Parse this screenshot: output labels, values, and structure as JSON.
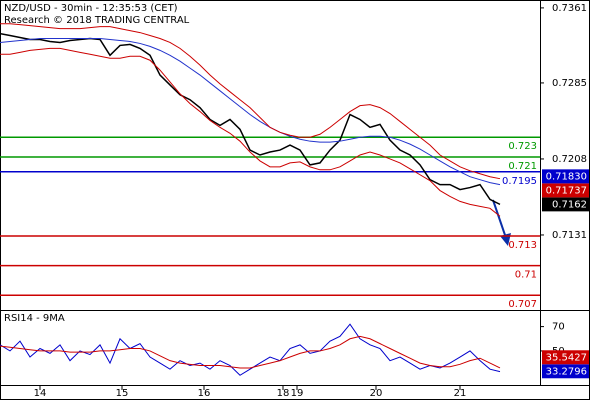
{
  "chart_data": [
    {
      "type": "line",
      "title": "NZD/USD - 30min - 12:35:53 (CET)",
      "subtitle": "Research © 2018 TRADING CENTRAL",
      "x": [
        0,
        2,
        4,
        6,
        8,
        10,
        12,
        14,
        16,
        18,
        20,
        22,
        24,
        26,
        28,
        30,
        32,
        34,
        36,
        38,
        40,
        42,
        44,
        46,
        48,
        50,
        52,
        54,
        56,
        58,
        60,
        62,
        64,
        66,
        68,
        70,
        72,
        74,
        76,
        78,
        80,
        82,
        84,
        86,
        88,
        90,
        92,
        94,
        96,
        98,
        100
      ],
      "xlim": [
        0,
        108
      ],
      "ylim": [
        0.7055,
        0.7369
      ],
      "yticks": [
        0.7361,
        0.7285,
        0.7208,
        0.7131
      ],
      "series": [
        {
          "color": "#000000",
          "values": [
            0.7335,
            0.7333,
            0.7331,
            0.7329,
            0.7329,
            0.7327,
            0.7326,
            0.7328,
            0.7329,
            0.733,
            0.7329,
            0.7313,
            0.7323,
            0.7324,
            0.732,
            0.7313,
            0.7293,
            0.7283,
            0.7273,
            0.7268,
            0.726,
            0.7248,
            0.7242,
            0.7248,
            0.7238,
            0.7217,
            0.7212,
            0.7215,
            0.7217,
            0.7222,
            0.7217,
            0.7202,
            0.7204,
            0.7217,
            0.7227,
            0.7253,
            0.7248,
            0.724,
            0.7243,
            0.7227,
            0.7217,
            0.7212,
            0.7202,
            0.7187,
            0.7182,
            0.7182,
            0.7177,
            0.7179,
            0.7182,
            0.7167,
            0.7162
          ]
        },
        {
          "color": "#2233cc",
          "values": [
            0.7326,
            0.7327,
            0.7328,
            0.7329,
            0.733,
            0.733,
            0.733,
            0.733,
            0.733,
            0.733,
            0.733,
            0.7329,
            0.7328,
            0.7327,
            0.7325,
            0.7322,
            0.7318,
            0.7313,
            0.7307,
            0.73,
            0.7293,
            0.7285,
            0.7277,
            0.7269,
            0.7261,
            0.7253,
            0.7246,
            0.724,
            0.7235,
            0.7231,
            0.7228,
            0.7226,
            0.7225,
            0.7225,
            0.7226,
            0.7228,
            0.723,
            0.7231,
            0.7231,
            0.723,
            0.7227,
            0.7223,
            0.7218,
            0.7212,
            0.7206,
            0.72,
            0.7195,
            0.719,
            0.7187,
            0.7184,
            0.7182
          ]
        },
        {
          "color": "#cc0000",
          "values": [
            0.7345,
            0.7345,
            0.7344,
            0.7343,
            0.7342,
            0.7341,
            0.734,
            0.734,
            0.734,
            0.7341,
            0.7342,
            0.7342,
            0.734,
            0.7338,
            0.7336,
            0.7333,
            0.733,
            0.7326,
            0.732,
            0.7312,
            0.7303,
            0.7293,
            0.7284,
            0.7276,
            0.7268,
            0.726,
            0.725,
            0.724,
            0.7235,
            0.7232,
            0.723,
            0.723,
            0.7233,
            0.724,
            0.7248,
            0.7256,
            0.7262,
            0.7263,
            0.726,
            0.7254,
            0.7246,
            0.7238,
            0.723,
            0.7222,
            0.7212,
            0.7206,
            0.72,
            0.7196,
            0.7193,
            0.719,
            0.7188
          ]
        },
        {
          "color": "#cc0000",
          "values": [
            0.7314,
            0.7314,
            0.7316,
            0.7318,
            0.7319,
            0.732,
            0.732,
            0.7318,
            0.7316,
            0.7314,
            0.7312,
            0.731,
            0.731,
            0.7312,
            0.7312,
            0.7308,
            0.7298,
            0.7286,
            0.7274,
            0.7264,
            0.7256,
            0.7247,
            0.724,
            0.7234,
            0.7226,
            0.7215,
            0.7206,
            0.72,
            0.72,
            0.7204,
            0.7205,
            0.72,
            0.7197,
            0.7197,
            0.72,
            0.7206,
            0.7212,
            0.7215,
            0.7212,
            0.7208,
            0.7204,
            0.7198,
            0.7192,
            0.7186,
            0.7176,
            0.717,
            0.7165,
            0.7162,
            0.716,
            0.7158,
            0.715
          ]
        }
      ],
      "levels": [
        {
          "value": 0.723,
          "color": "#009900"
        },
        {
          "value": 0.721,
          "color": "#009900"
        },
        {
          "value": 0.7195,
          "color": "#0000cc"
        },
        {
          "value": 0.713,
          "color": "#cc0000"
        },
        {
          "value": 0.71,
          "color": "#cc0000"
        },
        {
          "value": 0.707,
          "color": "#cc0000"
        }
      ],
      "price_tags": [
        {
          "value": 0.7183,
          "label": "0.71830",
          "color": "#0000cc"
        },
        {
          "value": 0.71737,
          "label": "0.71737",
          "color": "#cc0000"
        },
        {
          "value": 0.7162,
          "label": "0.7162",
          "color": "#000000"
        }
      ]
    },
    {
      "type": "line",
      "title": "RSI14 - 9MA",
      "x": [
        0,
        2,
        4,
        6,
        8,
        10,
        12,
        14,
        16,
        18,
        20,
        22,
        24,
        26,
        28,
        30,
        32,
        34,
        36,
        38,
        40,
        42,
        44,
        46,
        48,
        50,
        52,
        54,
        56,
        58,
        60,
        62,
        64,
        66,
        68,
        70,
        72,
        74,
        76,
        78,
        80,
        82,
        84,
        86,
        88,
        90,
        92,
        94,
        96,
        98,
        100
      ],
      "xlim": [
        0,
        108
      ],
      "ylim": [
        22,
        82
      ],
      "yticks": [
        70,
        50
      ],
      "xticks": [
        {
          "value": 8,
          "label": "14"
        },
        {
          "value": 24.4,
          "label": "15"
        },
        {
          "value": 40.8,
          "label": "16"
        },
        {
          "value": 56.6,
          "label": "18"
        },
        {
          "value": 59.4,
          "label": "19"
        },
        {
          "value": 75.2,
          "label": "20"
        },
        {
          "value": 92,
          "label": "21"
        }
      ],
      "series": [
        {
          "color": "#0000cc",
          "values": [
            55,
            50,
            58,
            45,
            52,
            48,
            55,
            42,
            50,
            47,
            55,
            40,
            60,
            52,
            56,
            45,
            40,
            35,
            42,
            38,
            40,
            35,
            42,
            38,
            30,
            35,
            40,
            45,
            42,
            52,
            55,
            48,
            50,
            58,
            62,
            72,
            60,
            55,
            52,
            42,
            45,
            40,
            35,
            38,
            36,
            40,
            45,
            50,
            42,
            35,
            33
          ]
        },
        {
          "color": "#cc0000",
          "values": [
            54,
            53,
            52,
            51,
            50,
            50,
            50,
            49,
            49,
            49,
            50,
            50,
            51,
            52,
            52,
            50,
            46,
            42,
            40,
            39,
            38,
            38,
            38,
            37,
            36,
            36,
            38,
            40,
            42,
            45,
            48,
            50,
            50,
            52,
            55,
            60,
            62,
            60,
            56,
            52,
            48,
            44,
            40,
            38,
            37,
            37,
            39,
            42,
            44,
            40,
            36
          ]
        }
      ],
      "price_tags": [
        {
          "value": 35.5427,
          "color": "#cc0000"
        },
        {
          "value": 33.2796,
          "color": "#0000cc"
        }
      ]
    }
  ]
}
